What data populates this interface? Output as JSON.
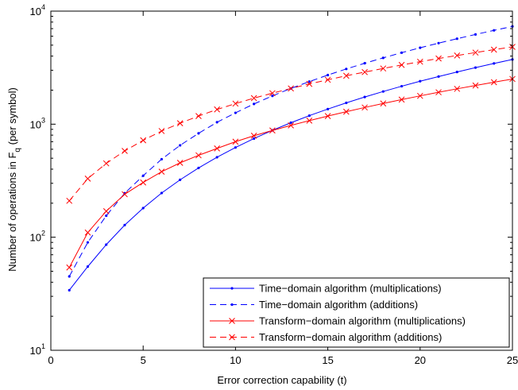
{
  "chart_data": {
    "type": "line",
    "title": "",
    "xlabel": "Error correction capability (t)",
    "ylabel_main": "Number of operations in F",
    "ylabel_sub": "q",
    "ylabel_suffix": " (per symbol)",
    "xlim": [
      0,
      25
    ],
    "ylim": [
      10,
      10000
    ],
    "y_scale": "log",
    "x_ticks": [
      0,
      5,
      10,
      15,
      20,
      25
    ],
    "x_tick_labels": [
      "0",
      "5",
      "10",
      "15",
      "20",
      "25"
    ],
    "y_ticks": [
      10,
      100,
      1000,
      10000
    ],
    "y_tick_labels": [
      {
        "base": "10",
        "exp": "1"
      },
      {
        "base": "10",
        "exp": "2"
      },
      {
        "base": "10",
        "exp": "3"
      },
      {
        "base": "10",
        "exp": "4"
      }
    ],
    "grid": false,
    "legend_position": "bottom-right",
    "x": [
      1,
      2,
      3,
      4,
      5,
      6,
      7,
      8,
      9,
      10,
      11,
      12,
      13,
      14,
      15,
      16,
      17,
      18,
      19,
      20,
      21,
      22,
      23,
      24,
      25
    ],
    "series": [
      {
        "name": "Time−domain algorithm (multiplications)",
        "color": "#0000ff",
        "dash": "solid",
        "marker": "dot",
        "values": [
          34,
          55,
          86,
          128,
          181,
          246,
          322,
          410,
          510,
          622,
          746,
          882,
          1030,
          1190,
          1360,
          1544,
          1740,
          1946,
          2166,
          2398,
          2640,
          2896,
          3164,
          3444,
          3736
        ]
      },
      {
        "name": "Time−domain algorithm (additions)",
        "color": "#0000ff",
        "dash": "dashed",
        "marker": "dot",
        "values": [
          45,
          90,
          155,
          245,
          350,
          490,
          650,
          830,
          1040,
          1260,
          1510,
          1780,
          2070,
          2380,
          2720,
          3080,
          3460,
          3860,
          4290,
          4740,
          5210,
          5700,
          6220,
          6760,
          7320
        ]
      },
      {
        "name": "Transform−domain algorithm (multiplications)",
        "color": "#ff0000",
        "dash": "solid",
        "marker": "x",
        "values": [
          54,
          110,
          170,
          240,
          305,
          380,
          455,
          530,
          610,
          700,
          790,
          880,
          975,
          1075,
          1180,
          1290,
          1405,
          1525,
          1650,
          1780,
          1915,
          2055,
          2200,
          2350,
          2510
        ]
      },
      {
        "name": "Transform−domain algorithm (additions)",
        "color": "#ff0000",
        "dash": "dashed",
        "marker": "x",
        "values": [
          210,
          330,
          450,
          580,
          720,
          870,
          1020,
          1180,
          1350,
          1520,
          1700,
          1880,
          2070,
          2270,
          2470,
          2680,
          2890,
          3110,
          3340,
          3570,
          3810,
          4050,
          4300,
          4560,
          4830
        ]
      }
    ]
  }
}
